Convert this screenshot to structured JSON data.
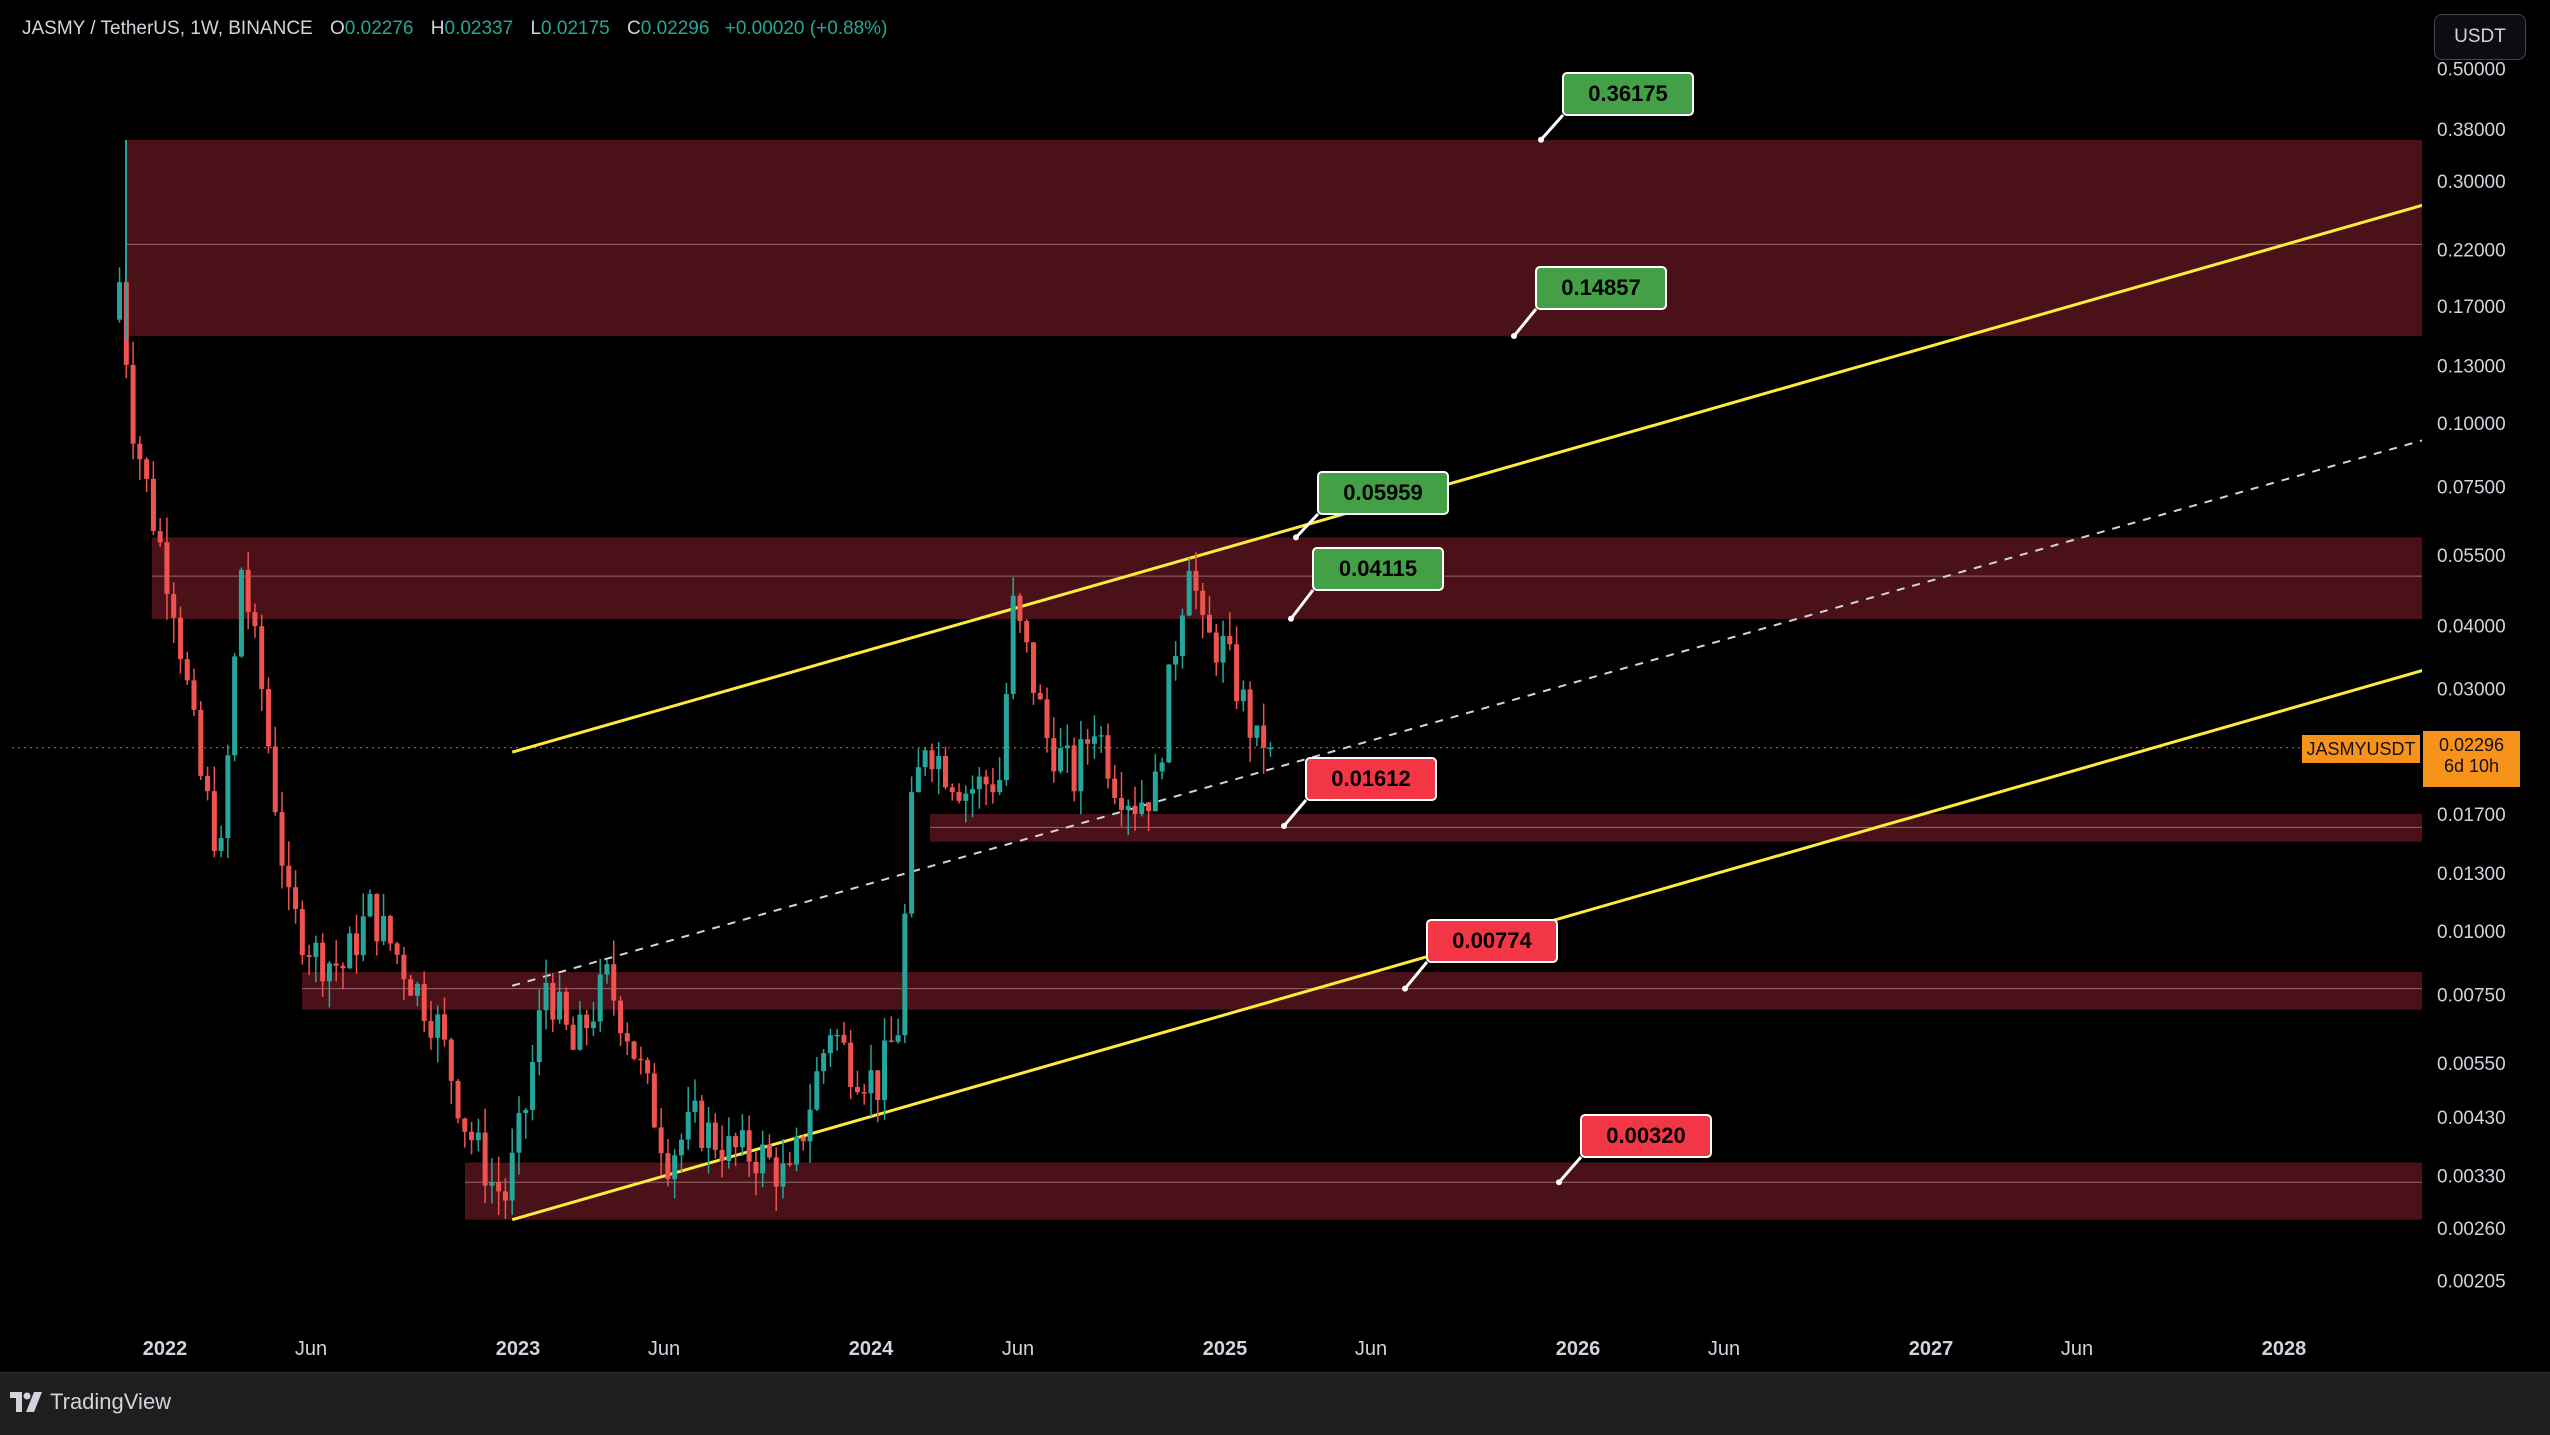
{
  "header": {
    "symbol": "JASMY / TetherUS, 1W, BINANCE",
    "open_label": "O",
    "open": "0.02276",
    "high_label": "H",
    "high": "0.02337",
    "low_label": "L",
    "low": "0.02175",
    "close_label": "C",
    "close": "0.02296",
    "change": "+0.00020 (+0.88%)"
  },
  "unit_button": "USDT",
  "current_price": {
    "symbol": "JASMYUSDT",
    "value": "0.02296",
    "countdown": "6d 10h"
  },
  "footer": {
    "brand": "TradingView"
  },
  "colors": {
    "up": "#26a69a",
    "down": "#ef5350",
    "zone": "#4a1218",
    "channel": "#ffeb3b",
    "label_green": "#43a047",
    "label_red": "#f23645",
    "price_tag": "#f7931a"
  },
  "chart_data": {
    "type": "candlestick",
    "timeframe": "1W",
    "y_scale": "log",
    "y_ticks": [
      "0.50000",
      "0.38000",
      "0.30000",
      "0.22000",
      "0.17000",
      "0.13000",
      "0.10000",
      "0.07500",
      "0.05500",
      "0.04000",
      "0.03000",
      "0.01700",
      "0.01300",
      "0.01000",
      "0.00750",
      "0.00550",
      "0.00430",
      "0.00330",
      "0.00260",
      "0.00205"
    ],
    "x_ticks": [
      "2022",
      "Jun",
      "2023",
      "Jun",
      "2024",
      "Jun",
      "2025",
      "Jun",
      "2026",
      "Jun",
      "2027",
      "Jun",
      "2028"
    ],
    "price_path": [
      [
        "2021-11-15",
        0.16
      ],
      [
        "2021-11-22",
        0.19
      ],
      [
        "2021-12-06",
        0.1
      ],
      [
        "2021-12-27",
        0.065
      ],
      [
        "2022-01-17",
        0.045
      ],
      [
        "2022-02-14",
        0.02
      ],
      [
        "2022-03-07",
        0.014
      ],
      [
        "2022-03-28",
        0.052
      ],
      [
        "2022-04-18",
        0.03
      ],
      [
        "2022-05-16",
        0.011
      ],
      [
        "2022-06-13",
        0.009
      ],
      [
        "2022-07-11",
        0.0085
      ],
      [
        "2022-08-08",
        0.011
      ],
      [
        "2022-09-05",
        0.009
      ],
      [
        "2022-10-17",
        0.0065
      ],
      [
        "2022-11-14",
        0.0042
      ],
      [
        "2022-12-12",
        0.0032
      ],
      [
        "2022-12-26",
        0.003
      ],
      [
        "2023-01-16",
        0.0045
      ],
      [
        "2023-02-06",
        0.008
      ],
      [
        "2023-03-06",
        0.0058
      ],
      [
        "2023-04-10",
        0.008
      ],
      [
        "2023-05-01",
        0.0064
      ],
      [
        "2023-06-12",
        0.0036
      ],
      [
        "2023-07-10",
        0.0042
      ],
      [
        "2023-08-14",
        0.0037
      ],
      [
        "2023-09-18",
        0.0036
      ],
      [
        "2023-10-16",
        0.0032
      ],
      [
        "2023-11-06",
        0.0046
      ],
      [
        "2023-11-27",
        0.0065
      ],
      [
        "2023-12-18",
        0.0055
      ],
      [
        "2024-01-15",
        0.005
      ],
      [
        "2024-02-05",
        0.0065
      ],
      [
        "2024-02-19",
        0.017
      ],
      [
        "2024-03-04",
        0.024
      ],
      [
        "2024-03-25",
        0.021
      ],
      [
        "2024-04-15",
        0.019
      ],
      [
        "2024-05-20",
        0.02
      ],
      [
        "2024-06-03",
        0.043
      ],
      [
        "2024-06-17",
        0.035
      ],
      [
        "2024-07-08",
        0.024
      ],
      [
        "2024-08-05",
        0.02
      ],
      [
        "2024-08-26",
        0.026
      ],
      [
        "2024-09-16",
        0.02
      ],
      [
        "2024-10-07",
        0.018
      ],
      [
        "2024-10-28",
        0.019
      ],
      [
        "2024-11-11",
        0.03
      ],
      [
        "2024-12-02",
        0.056
      ],
      [
        "2024-12-16",
        0.038
      ],
      [
        "2025-01-06",
        0.036
      ],
      [
        "2025-01-27",
        0.028
      ],
      [
        "2025-02-10",
        0.023
      ],
      [
        "2025-02-17",
        0.02296
      ]
    ],
    "zones": [
      {
        "low": 0.14857,
        "high": 0.36175,
        "mid": 0.225
      },
      {
        "low": 0.04115,
        "high": 0.05959,
        "mid": 0.05
      },
      {
        "low": 0.015,
        "high": 0.017,
        "mid": 0.016
      },
      {
        "low": 0.007,
        "high": 0.0083,
        "mid": 0.0077
      },
      {
        "low": 0.0027,
        "high": 0.0035,
        "mid": 0.0032
      }
    ],
    "levels": [
      {
        "label": "0.36175",
        "color": "green"
      },
      {
        "label": "0.14857",
        "color": "green"
      },
      {
        "label": "0.05959",
        "color": "green"
      },
      {
        "label": "0.04115",
        "color": "green"
      },
      {
        "label": "0.01612",
        "color": "red"
      },
      {
        "label": "0.00774",
        "color": "red"
      },
      {
        "label": "0.00320",
        "color": "red"
      }
    ],
    "channel": {
      "upper": [
        [
          "2022-12-26",
          0.0225
        ],
        [
          "2028-09-01",
          0.305
        ]
      ],
      "middle": [
        [
          "2022-12-26",
          0.0078
        ],
        [
          "2028-09-01",
          0.105
        ]
      ],
      "lower": [
        [
          "2022-12-26",
          0.0027
        ],
        [
          "2028-09-01",
          0.037
        ]
      ]
    }
  }
}
